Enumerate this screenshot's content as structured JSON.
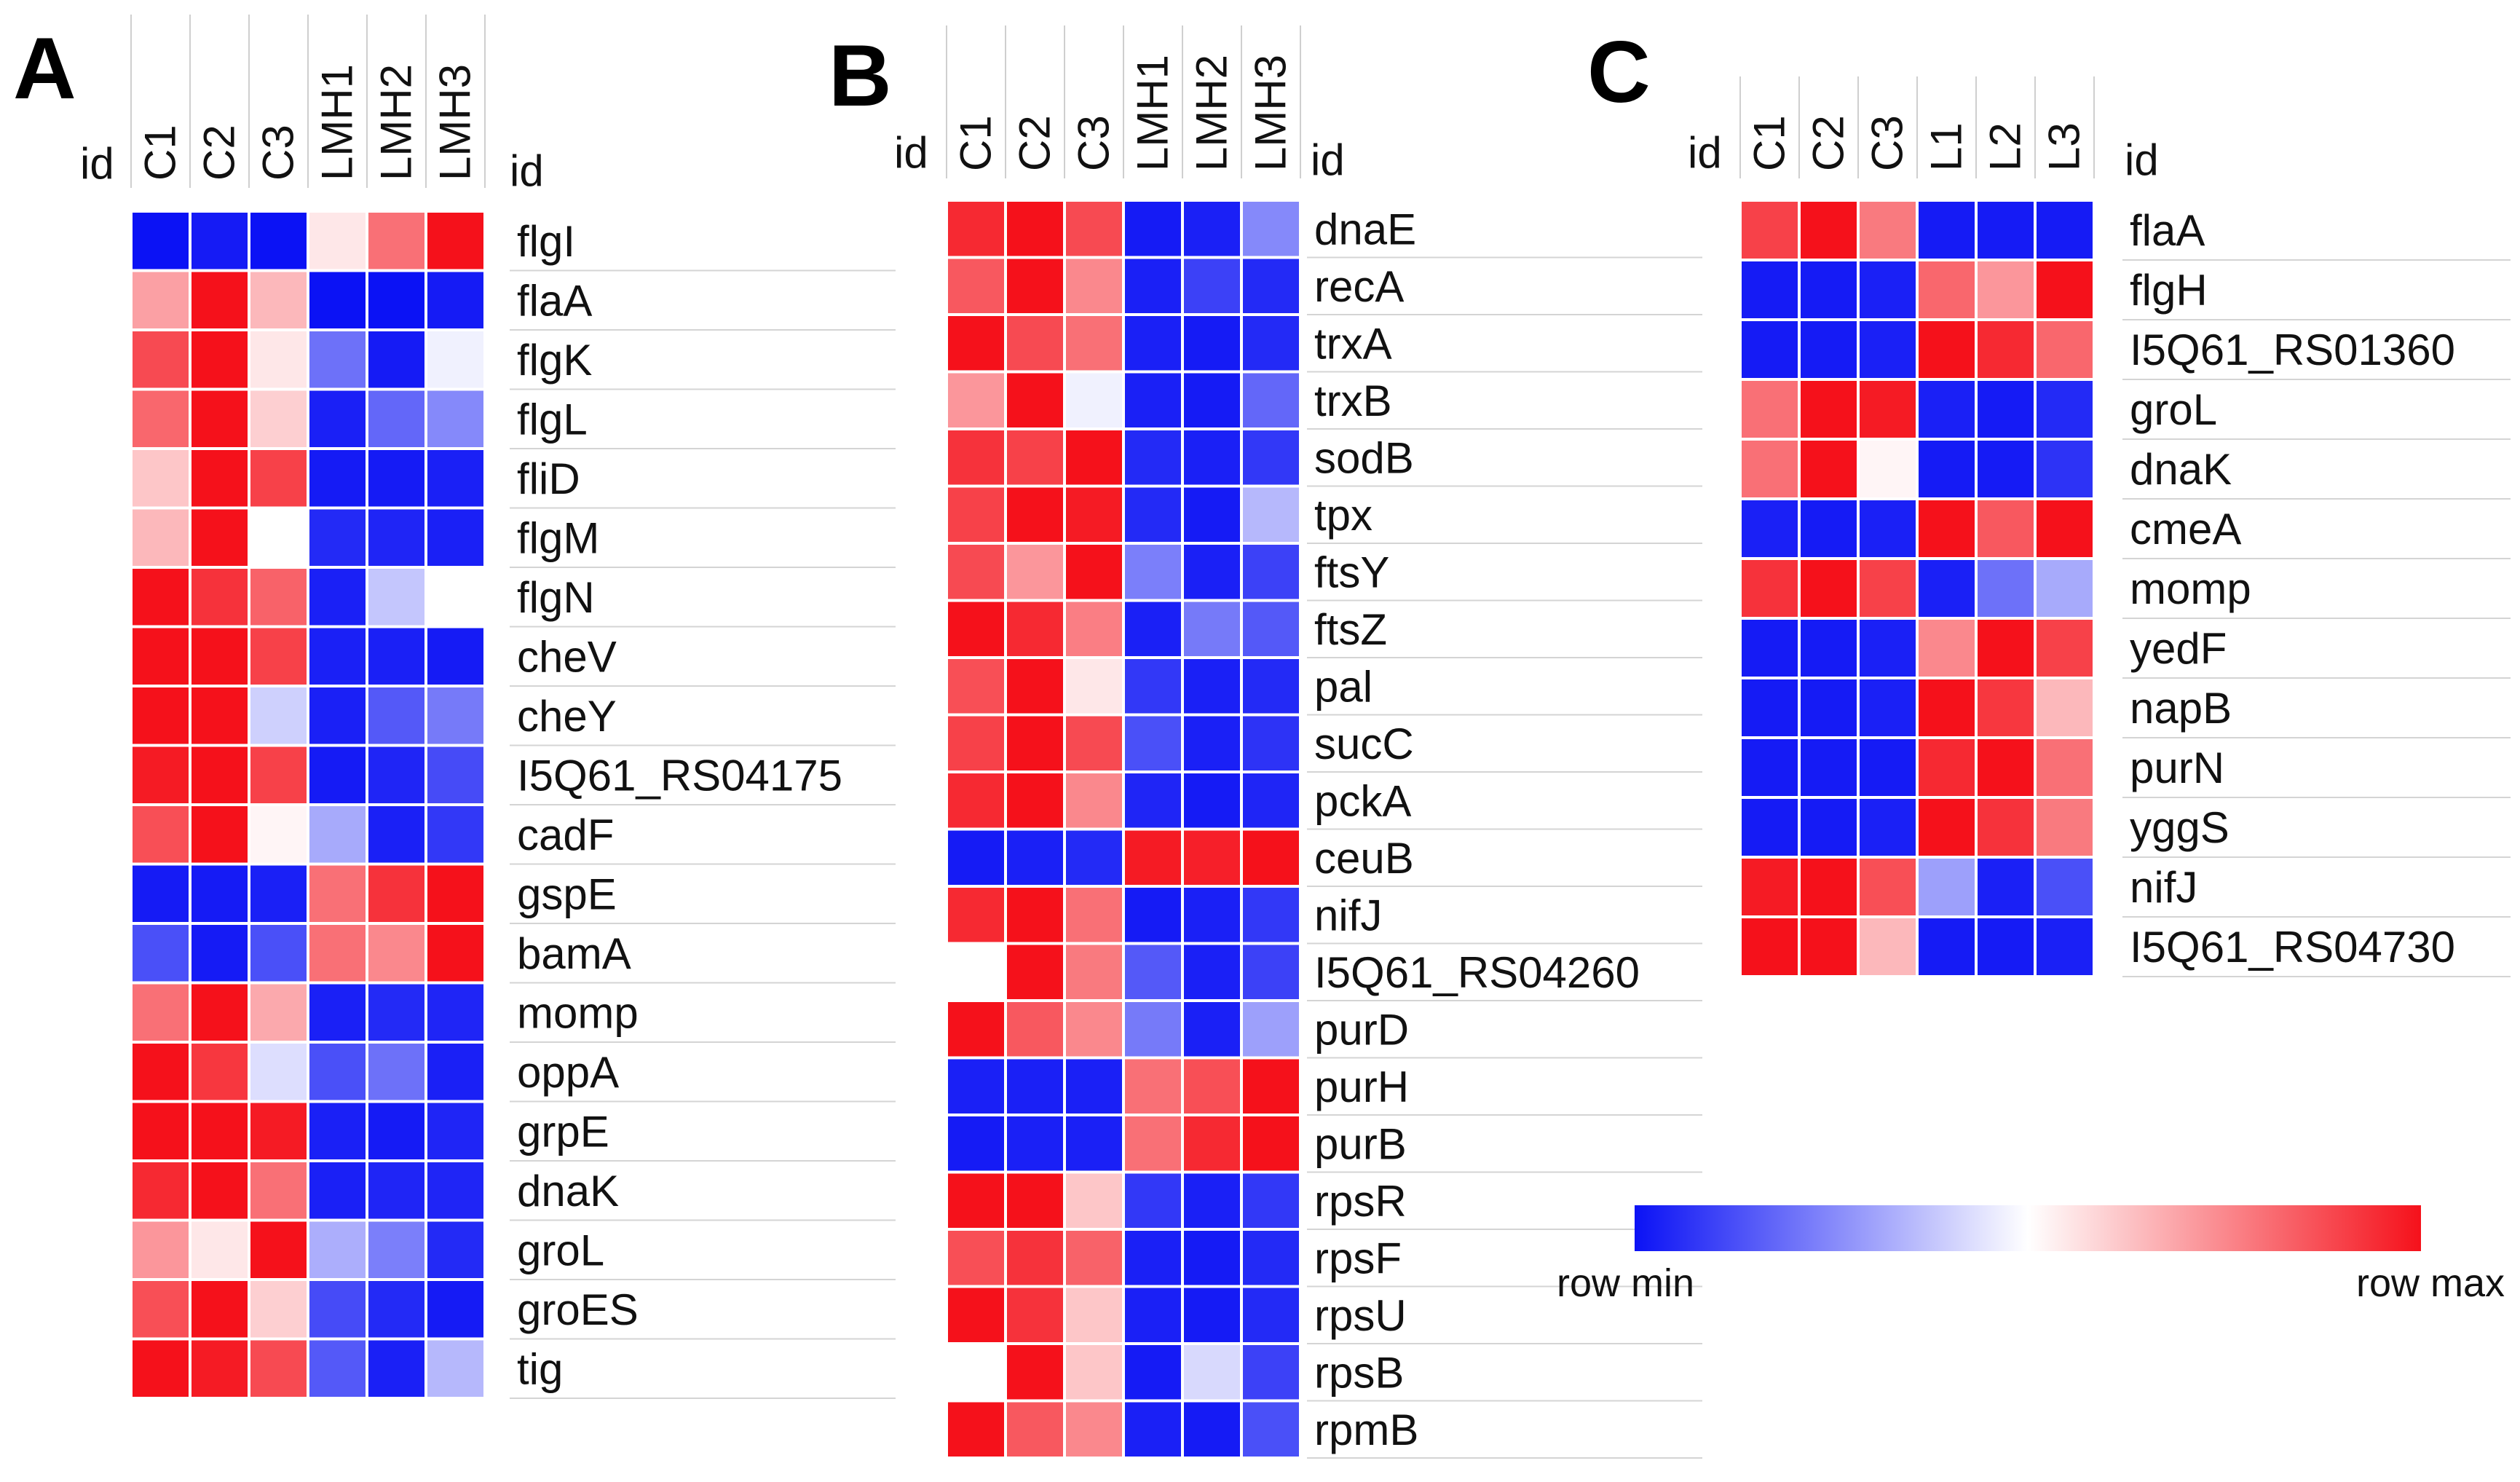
{
  "legend": {
    "min_label": "row min",
    "max_label": "row max",
    "colors": {
      "min": "#0b12f5",
      "mid": "#ffffff",
      "max": "#f5111b"
    }
  },
  "chart_data": [
    {
      "type": "heatmap",
      "panel": "A",
      "id_label": "id",
      "columns": [
        "C1",
        "C2",
        "C3",
        "LMH1",
        "LMH2",
        "LMH3"
      ],
      "rows": [
        "flgI",
        "flaA",
        "flgK",
        "flgL",
        "fliD",
        "flgM",
        "flgN",
        "cheV",
        "cheY",
        "I5Q61_RS04175",
        "cadF",
        "gspE",
        "bamA",
        "momp",
        "oppA",
        "grpE",
        "dnaK",
        "groL",
        "groES",
        "tig"
      ],
      "values": [
        [
          0.0,
          0.02,
          0.0,
          0.55,
          0.8,
          1.0
        ],
        [
          0.7,
          1.0,
          0.65,
          0.0,
          0.0,
          0.02
        ],
        [
          0.88,
          1.0,
          0.55,
          0.2,
          0.02,
          0.47
        ],
        [
          0.82,
          1.0,
          0.6,
          0.03,
          0.18,
          0.25
        ],
        [
          0.62,
          1.0,
          0.9,
          0.02,
          0.02,
          0.03
        ],
        [
          0.65,
          1.0,
          0.5,
          0.05,
          0.04,
          0.03
        ],
        [
          1.0,
          0.93,
          0.83,
          0.03,
          0.38,
          0.5
        ],
        [
          1.0,
          1.0,
          0.9,
          0.03,
          0.03,
          0.02
        ],
        [
          1.0,
          1.0,
          0.4,
          0.03,
          0.15,
          0.22
        ],
        [
          0.98,
          1.0,
          0.9,
          0.02,
          0.04,
          0.12
        ],
        [
          0.87,
          1.0,
          0.52,
          0.32,
          0.03,
          0.08
        ],
        [
          0.02,
          0.02,
          0.03,
          0.8,
          0.93,
          1.0
        ],
        [
          0.13,
          0.02,
          0.13,
          0.8,
          0.75,
          1.0
        ],
        [
          0.8,
          1.0,
          0.68,
          0.03,
          0.05,
          0.04
        ],
        [
          1.0,
          0.92,
          0.43,
          0.13,
          0.2,
          0.03
        ],
        [
          1.0,
          1.0,
          0.98,
          0.03,
          0.02,
          0.04
        ],
        [
          0.95,
          1.0,
          0.8,
          0.03,
          0.04,
          0.04
        ],
        [
          0.72,
          0.55,
          1.0,
          0.33,
          0.23,
          0.05
        ],
        [
          0.87,
          1.0,
          0.6,
          0.12,
          0.05,
          0.02
        ],
        [
          1.0,
          0.98,
          0.88,
          0.15,
          0.03,
          0.35
        ]
      ]
    },
    {
      "type": "heatmap",
      "panel": "B",
      "id_label": "id",
      "columns": [
        "C1",
        "C2",
        "C3",
        "LMH1",
        "LMH2",
        "LMH3"
      ],
      "rows": [
        "dnaE",
        "recA",
        "trxA",
        "trxB",
        "sodB",
        "tpx",
        "ftsY",
        "ftsZ",
        "pal",
        "sucC",
        "pckA",
        "ceuB",
        "nifJ",
        "I5Q61_RS04260",
        "purD",
        "purH",
        "purB",
        "rpsR",
        "rpsF",
        "rpsU",
        "rpsB",
        "rpmB"
      ],
      "values": [
        [
          0.95,
          1.0,
          0.88,
          0.02,
          0.03,
          0.25
        ],
        [
          0.85,
          1.0,
          0.75,
          0.03,
          0.1,
          0.05
        ],
        [
          1.0,
          0.88,
          0.8,
          0.03,
          0.02,
          0.05
        ],
        [
          0.72,
          1.0,
          0.47,
          0.03,
          0.02,
          0.18
        ],
        [
          0.93,
          0.9,
          1.0,
          0.05,
          0.03,
          0.08
        ],
        [
          0.9,
          1.0,
          0.98,
          0.05,
          0.02,
          0.35
        ],
        [
          0.88,
          0.72,
          1.0,
          0.23,
          0.03,
          0.1
        ],
        [
          1.0,
          0.95,
          0.77,
          0.03,
          0.22,
          0.15
        ],
        [
          0.87,
          1.0,
          0.55,
          0.08,
          0.03,
          0.05
        ],
        [
          0.9,
          1.0,
          0.88,
          0.13,
          0.03,
          0.07
        ],
        [
          0.95,
          1.0,
          0.75,
          0.04,
          0.02,
          0.04
        ],
        [
          0.02,
          0.03,
          0.05,
          0.98,
          0.97,
          1.0
        ],
        [
          0.95,
          1.0,
          0.8,
          0.02,
          0.03,
          0.08
        ],
        [
          0.5,
          1.0,
          0.78,
          0.15,
          0.03,
          0.1
        ],
        [
          1.0,
          0.85,
          0.75,
          0.22,
          0.03,
          0.3
        ],
        [
          0.03,
          0.03,
          0.03,
          0.8,
          0.87,
          1.0
        ],
        [
          0.02,
          0.03,
          0.03,
          0.8,
          0.95,
          1.0
        ],
        [
          1.0,
          1.0,
          0.62,
          0.08,
          0.03,
          0.08
        ],
        [
          0.87,
          0.93,
          0.83,
          0.03,
          0.02,
          0.05
        ],
        [
          1.0,
          0.93,
          0.62,
          0.03,
          0.02,
          0.05
        ],
        [
          0.5,
          1.0,
          0.62,
          0.02,
          0.42,
          0.1
        ],
        [
          1.0,
          0.85,
          0.75,
          0.03,
          0.02,
          0.13
        ]
      ]
    },
    {
      "type": "heatmap",
      "panel": "C",
      "id_label": "id",
      "columns": [
        "C1",
        "C2",
        "C3",
        "L1",
        "L2",
        "L3"
      ],
      "rows": [
        "flaA",
        "flgH",
        "I5Q61_RS01360",
        "groL",
        "dnaK",
        "cmeA",
        "momp",
        "yedF",
        "napB",
        "purN",
        "yggS",
        "nifJ",
        "I5Q61_RS04730"
      ],
      "values": [
        [
          0.9,
          1.0,
          0.78,
          0.02,
          0.02,
          0.02
        ],
        [
          0.02,
          0.02,
          0.03,
          0.82,
          0.72,
          1.0
        ],
        [
          0.02,
          0.02,
          0.03,
          1.0,
          0.95,
          0.82
        ],
        [
          0.8,
          1.0,
          0.98,
          0.03,
          0.02,
          0.05
        ],
        [
          0.8,
          1.0,
          0.52,
          0.02,
          0.02,
          0.07
        ],
        [
          0.03,
          0.02,
          0.03,
          1.0,
          0.85,
          1.0
        ],
        [
          0.93,
          1.0,
          0.9,
          0.03,
          0.2,
          0.32
        ],
        [
          0.02,
          0.02,
          0.03,
          0.75,
          1.0,
          0.9
        ],
        [
          0.02,
          0.02,
          0.03,
          1.0,
          0.92,
          0.65
        ],
        [
          0.02,
          0.02,
          0.02,
          0.95,
          1.0,
          0.8
        ],
        [
          0.02,
          0.02,
          0.03,
          1.0,
          0.93,
          0.78
        ],
        [
          0.98,
          1.0,
          0.87,
          0.3,
          0.03,
          0.13
        ],
        [
          1.0,
          1.0,
          0.65,
          0.02,
          0.02,
          0.03
        ]
      ]
    }
  ]
}
